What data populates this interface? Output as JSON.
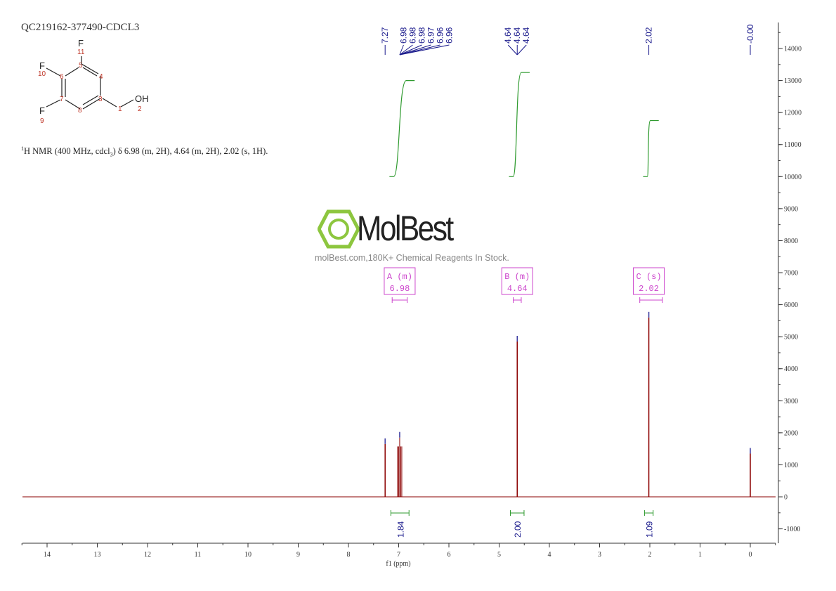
{
  "sample_id": "QC219162-377490-CDCL3",
  "summary": {
    "prefix": "1",
    "text": "H NMR (400 MHz, cdcl",
    "sub": "3",
    "rest": ") δ 6.98 (m, 2H), 4.64 (m, 2H), 2.02 (s, 1H)."
  },
  "structure": {
    "atoms": [
      "F",
      "F",
      "F",
      "OH"
    ],
    "numbers": [
      "1",
      "2",
      "3",
      "4",
      "5",
      "6",
      "7",
      "8",
      "9",
      "10",
      "11"
    ]
  },
  "watermark": {
    "name": "MolBest",
    "tagline": "molBest.com,180K+ Chemical Reagents In Stock.",
    "color": "#8dc63f"
  },
  "chart_data": {
    "type": "line",
    "xlabel": "f1 (ppm)",
    "xlim": [
      14.5,
      -0.5
    ],
    "ylim": [
      -1400,
      14800
    ],
    "x_ticks": [
      "14",
      "13",
      "12",
      "11",
      "10",
      "9",
      "8",
      "7",
      "6",
      "5",
      "4",
      "3",
      "2",
      "1",
      "0"
    ],
    "y_ticks": [
      "-1000",
      "0",
      "1000",
      "2000",
      "3000",
      "4000",
      "5000",
      "6000",
      "7000",
      "8000",
      "9000",
      "10000",
      "11000",
      "12000",
      "13000",
      "14000"
    ],
    "peaks": [
      {
        "ppm": 7.27,
        "height": 1650
      },
      {
        "ppm": 6.98,
        "height": 1850
      },
      {
        "ppm": 4.64,
        "height": 4850
      },
      {
        "ppm": 2.02,
        "height": 5600
      },
      {
        "ppm": 0.0,
        "height": 1350
      }
    ],
    "peak_labels": [
      {
        "group": "7.27",
        "values": [
          "7.27"
        ],
        "at": 7.27
      },
      {
        "group": "6.98",
        "values": [
          "6.98",
          "6.98",
          "6.98",
          "6.97",
          "6.96",
          "6.96"
        ],
        "at": 6.98
      },
      {
        "group": "4.64",
        "values": [
          "4.64",
          "4.64",
          "4.64"
        ],
        "at": 4.64
      },
      {
        "group": "2.02",
        "values": [
          "2.02"
        ],
        "at": 2.02
      },
      {
        "group": "-0.00",
        "values": [
          "-0.00"
        ],
        "at": 0.0
      }
    ],
    "integrals": [
      {
        "from": 7.1,
        "to": 6.85,
        "value": "1.84",
        "start": 10000,
        "end": 13000
      },
      {
        "from": 4.72,
        "to": 4.56,
        "value": "2.00",
        "start": 10000,
        "end": 13250
      },
      {
        "from": 2.05,
        "to": 1.99,
        "value": "1.09",
        "start": 10000,
        "end": 11750
      }
    ],
    "multiplets": [
      {
        "label": "A (m)",
        "shift": "6.98",
        "from": 7.13,
        "to": 6.83
      },
      {
        "label": "B (m)",
        "shift": "4.64",
        "from": 4.72,
        "to": 4.56
      },
      {
        "label": "C (s)",
        "shift": "2.02",
        "from": 2.2,
        "to": 1.75
      }
    ],
    "colors": {
      "spectrum": "#8b0000",
      "integral": "#2e9a2e",
      "peak_label": "#1a1a8c",
      "multiplet": "#cc44cc",
      "axis": "#333333"
    }
  }
}
